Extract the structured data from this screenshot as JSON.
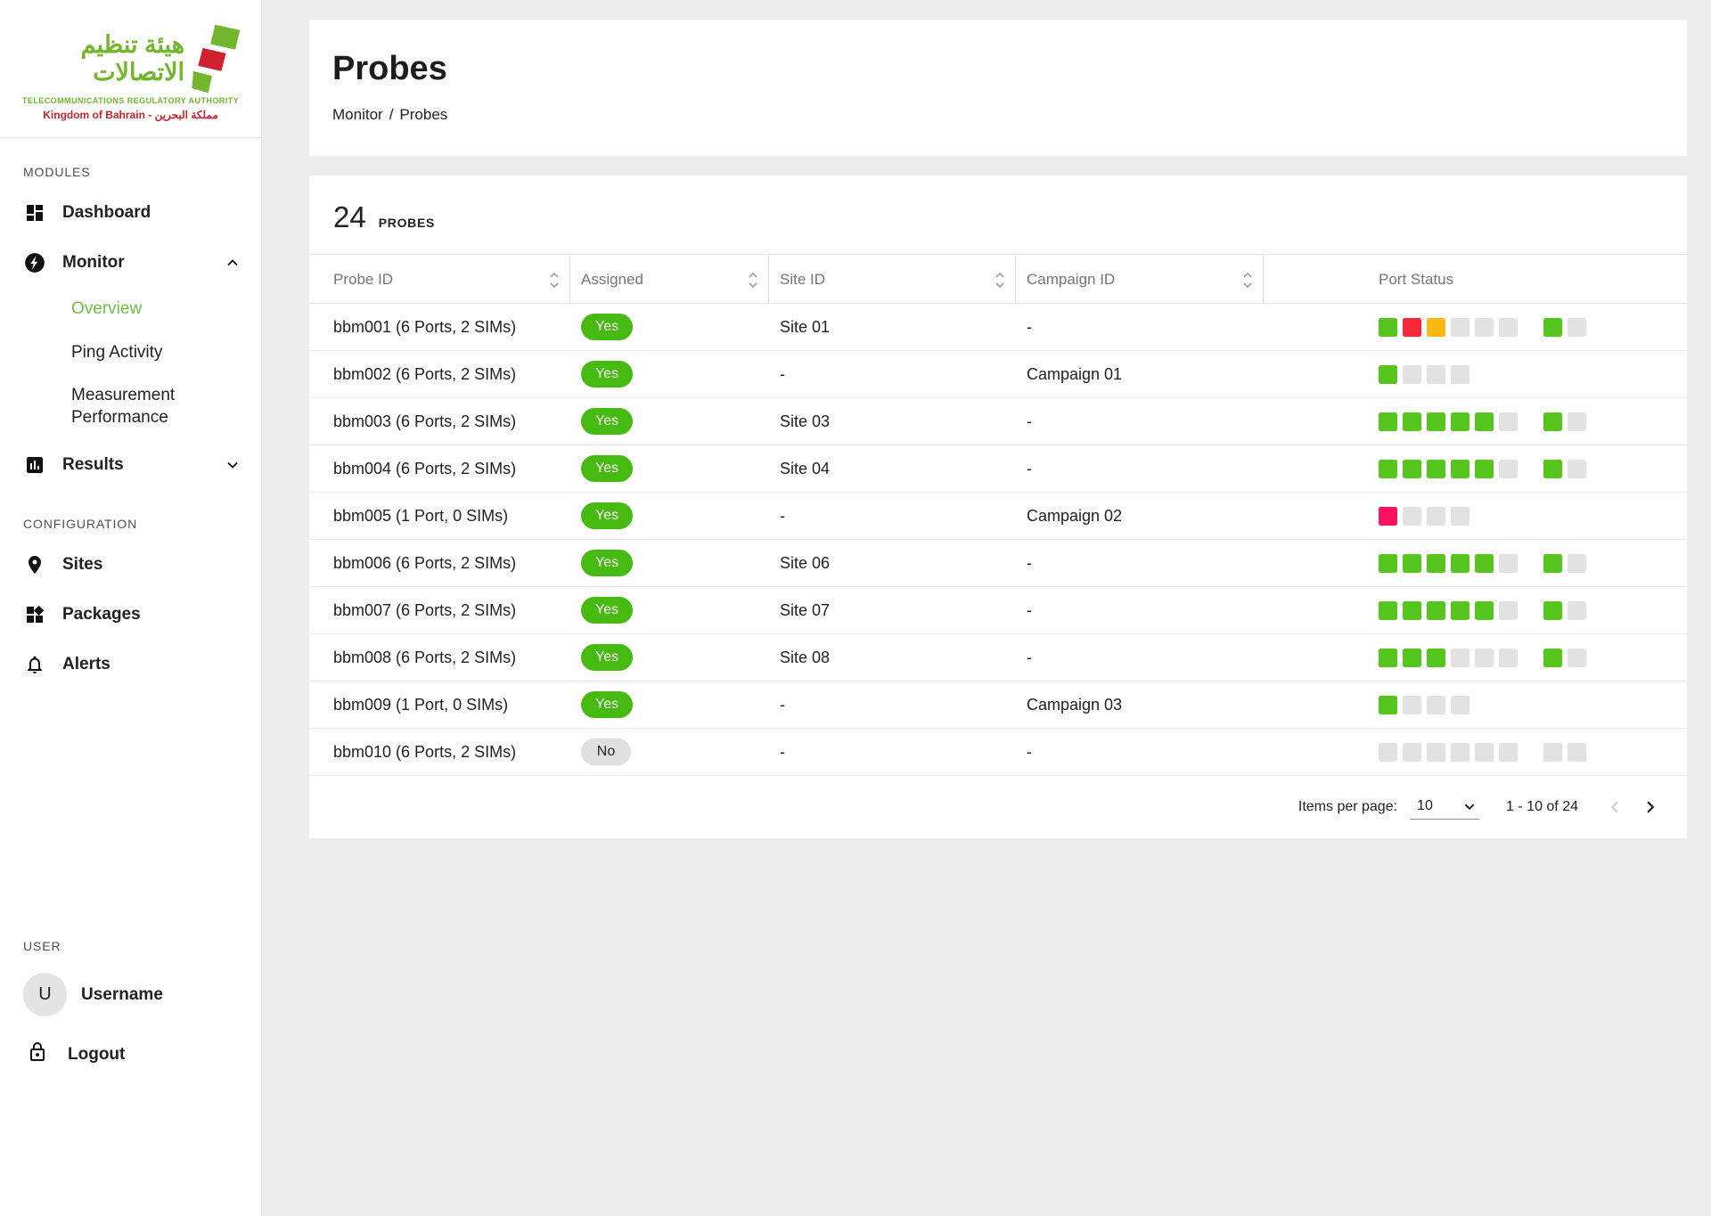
{
  "colors": {
    "brand_green": "#72b62c",
    "brand_red": "#cf2030",
    "active_link": "#6cbe3e",
    "pill_yes": "#47ba11",
    "pill_no": "#e0e0e0",
    "port": {
      "green": "#56c51d",
      "red": "#f42837",
      "pink": "#fb1360",
      "amber": "#fcb811",
      "gray": "#e2e2e2"
    }
  },
  "sidebar": {
    "logo": {
      "arabic": "هيئة تنظيم الاتصالات",
      "english": "TELECOMMUNICATIONS REGULATORY AUTHORITY",
      "kingdom": "Kingdom of Bahrain - مملكة البحرين"
    },
    "modules_label": "MODULES",
    "items": {
      "dashboard": "Dashboard",
      "monitor": "Monitor",
      "overview": "Overview",
      "ping_activity": "Ping Activity",
      "measurement_performance": "Measurement Performance",
      "results": "Results",
      "sites": "Sites",
      "packages": "Packages",
      "alerts": "Alerts"
    },
    "configuration_label": "CONFIGURATION",
    "user_label": "USER",
    "avatar_initial": "U",
    "username": "Username",
    "logout": "Logout"
  },
  "header": {
    "title": "Probes",
    "breadcrumb": {
      "parent": "Monitor",
      "separator": "/",
      "current": "Probes"
    }
  },
  "table": {
    "count": "24",
    "count_label": "PROBES",
    "columns": [
      {
        "label": "Probe ID",
        "sortable": true
      },
      {
        "label": "Assigned",
        "sortable": true
      },
      {
        "label": "Site ID",
        "sortable": true
      },
      {
        "label": "Campaign ID",
        "sortable": true
      },
      {
        "label": "Port Status",
        "sortable": false
      }
    ],
    "rows": [
      {
        "probe_id": "bbm001 (6 Ports, 2 SIMs)",
        "assigned": "Yes",
        "site_id": "Site 01",
        "campaign_id": "-",
        "port_groups": [
          [
            "green",
            "red",
            "amber",
            "gray",
            "gray",
            "gray"
          ],
          [
            "green",
            "gray"
          ]
        ]
      },
      {
        "probe_id": "bbm002 (6 Ports, 2 SIMs)",
        "assigned": "Yes",
        "site_id": "-",
        "campaign_id": "Campaign 01",
        "port_groups": [
          [
            "green",
            "gray",
            "gray",
            "gray"
          ]
        ]
      },
      {
        "probe_id": "bbm003 (6 Ports, 2 SIMs)",
        "assigned": "Yes",
        "site_id": "Site 03",
        "campaign_id": "-",
        "port_groups": [
          [
            "green",
            "green",
            "green",
            "green",
            "green",
            "gray"
          ],
          [
            "green",
            "gray"
          ]
        ]
      },
      {
        "probe_id": "bbm004 (6 Ports, 2 SIMs)",
        "assigned": "Yes",
        "site_id": "Site 04",
        "campaign_id": "-",
        "port_groups": [
          [
            "green",
            "green",
            "green",
            "green",
            "green",
            "gray"
          ],
          [
            "green",
            "gray"
          ]
        ]
      },
      {
        "probe_id": "bbm005 (1 Port, 0 SIMs)",
        "assigned": "Yes",
        "site_id": "-",
        "campaign_id": "Campaign 02",
        "port_groups": [
          [
            "pink",
            "gray",
            "gray",
            "gray"
          ]
        ]
      },
      {
        "probe_id": "bbm006 (6 Ports, 2 SIMs)",
        "assigned": "Yes",
        "site_id": "Site 06",
        "campaign_id": "-",
        "port_groups": [
          [
            "green",
            "green",
            "green",
            "green",
            "green",
            "gray"
          ],
          [
            "green",
            "gray"
          ]
        ]
      },
      {
        "probe_id": "bbm007 (6 Ports, 2 SIMs)",
        "assigned": "Yes",
        "site_id": "Site 07",
        "campaign_id": "-",
        "port_groups": [
          [
            "green",
            "green",
            "green",
            "green",
            "green",
            "gray"
          ],
          [
            "green",
            "gray"
          ]
        ]
      },
      {
        "probe_id": "bbm008 (6 Ports, 2 SIMs)",
        "assigned": "Yes",
        "site_id": "Site 08",
        "campaign_id": "-",
        "port_groups": [
          [
            "green",
            "green",
            "green",
            "gray",
            "gray",
            "gray"
          ],
          [
            "green",
            "gray"
          ]
        ]
      },
      {
        "probe_id": "bbm009 (1 Port, 0 SIMs)",
        "assigned": "Yes",
        "site_id": "-",
        "campaign_id": "Campaign 03",
        "port_groups": [
          [
            "green",
            "gray",
            "gray",
            "gray"
          ]
        ]
      },
      {
        "probe_id": "bbm010 (6 Ports, 2 SIMs)",
        "assigned": "No",
        "site_id": "-",
        "campaign_id": "-",
        "port_groups": [
          [
            "gray",
            "gray",
            "gray",
            "gray",
            "gray",
            "gray"
          ],
          [
            "gray",
            "gray"
          ]
        ]
      }
    ]
  },
  "pagination": {
    "items_per_page_label": "Items per page:",
    "items_per_page_value": "10",
    "range_label": "1 - 10 of 24"
  }
}
